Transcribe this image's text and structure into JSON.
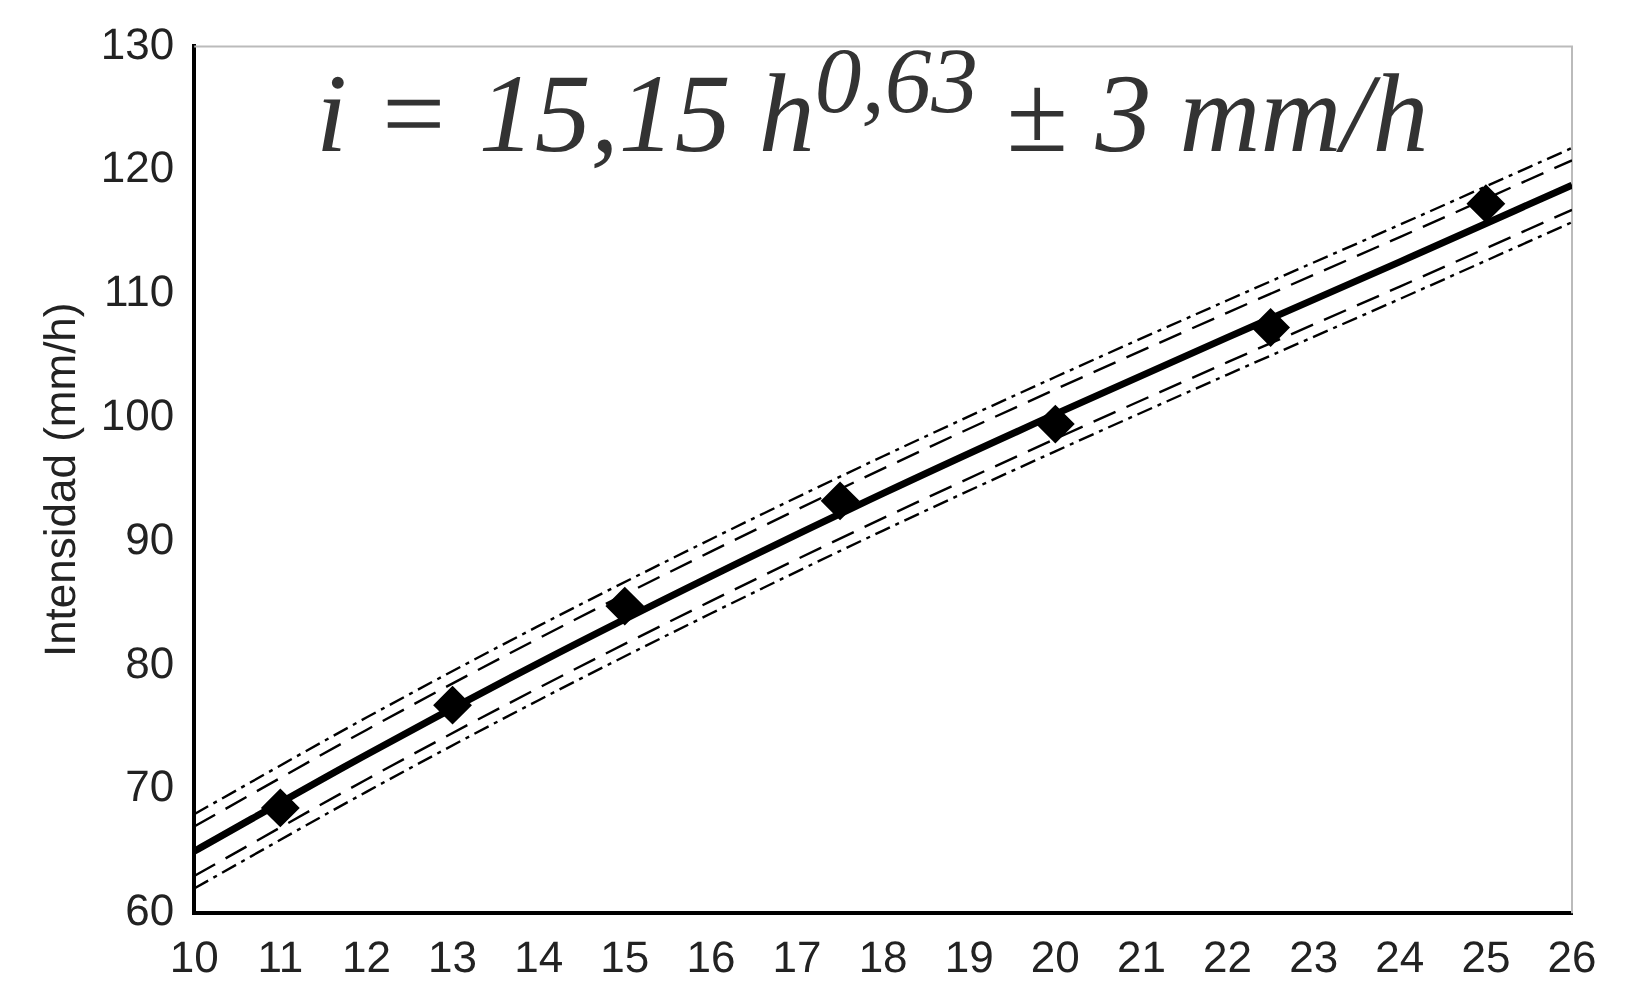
{
  "chart_data": {
    "type": "scatter",
    "ylabel": "Intensidad (mm/h)",
    "annotations": [
      "i = 15,15 h$^{0,63}$ ± 3 mm/h"
    ],
    "xlim": [
      10,
      26
    ],
    "ylim": [
      60,
      130
    ],
    "xticks": [
      10,
      11,
      12,
      13,
      14,
      15,
      16,
      17,
      18,
      19,
      20,
      21,
      22,
      23,
      24,
      25,
      26
    ],
    "yticks": [
      60,
      70,
      80,
      90,
      100,
      110,
      120,
      130
    ],
    "grid": false,
    "legend": false,
    "series": [
      {
        "type": "scatter",
        "marker": "diamond",
        "color": "#000000",
        "x": [
          11,
          13,
          15,
          17.5,
          20,
          22.5,
          25
        ],
        "values": [
          68.5,
          76.8,
          84.8,
          93.3,
          99.5,
          107.3,
          117.3
        ]
      },
      {
        "type": "line",
        "line_style": "solid",
        "marker": "none",
        "color": "#000000",
        "x": [
          10,
          12,
          14,
          16,
          18,
          20,
          22,
          24,
          26
        ],
        "values": [
          65,
          72.8,
          80.2,
          87.2,
          93.9,
          100.3,
          106.5,
          112.6,
          118.8
        ]
      },
      {
        "type": "line",
        "line_style": "dashed",
        "color": "#000000",
        "x": [
          10,
          12,
          14,
          16,
          18,
          20,
          22,
          24,
          26
        ],
        "values": [
          67,
          74.8,
          82.2,
          89.2,
          95.9,
          102.3,
          108.5,
          114.6,
          120.8
        ]
      },
      {
        "type": "line",
        "line_style": "dashed",
        "color": "#000000",
        "x": [
          10,
          12,
          14,
          16,
          18,
          20,
          22,
          24,
          26
        ],
        "values": [
          63,
          70.8,
          78.2,
          85.2,
          91.9,
          98.3,
          104.5,
          110.6,
          116.8
        ]
      },
      {
        "type": "line",
        "line_style": "dotted",
        "color": "#000000",
        "x": [
          10,
          12,
          14,
          16,
          18,
          20,
          22,
          24,
          26
        ],
        "values": [
          68,
          75.8,
          83.2,
          90.2,
          96.9,
          103.3,
          109.5,
          115.6,
          121.8
        ]
      },
      {
        "type": "line",
        "line_style": "dotted",
        "color": "#000000",
        "x": [
          10,
          12,
          14,
          16,
          18,
          20,
          22,
          24,
          26
        ],
        "values": [
          62,
          69.8,
          77.2,
          84.2,
          90.9,
          97.3,
          103.5,
          109.6,
          115.8
        ]
      }
    ]
  }
}
